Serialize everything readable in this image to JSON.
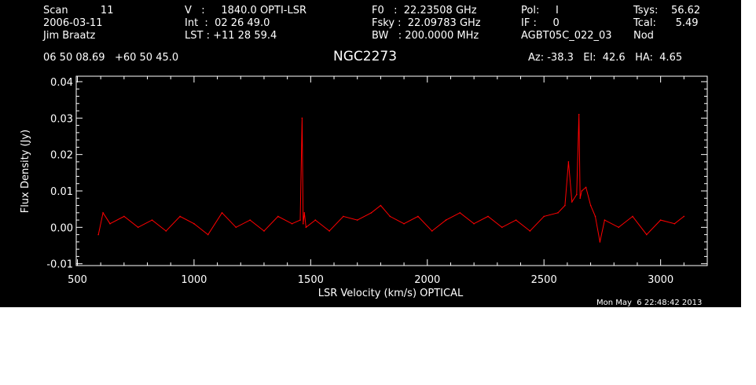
{
  "header": {
    "scan": "Scan          11",
    "date": "2006-03-11",
    "observer": "Jim Braatz",
    "velocity": "V   :     1840.0 OPTI-LSR",
    "int_time": "Int  :  02 26 49.0",
    "lst": "LST : +11 28 59.4",
    "f0": "F0   :  22.23508 GHz",
    "fsky": "Fsky :  22.09783 GHz",
    "bw": "BW   : 200.0000 MHz",
    "pol": "Pol:     I",
    "if": "IF :     0",
    "project": "AGBT05C_022_03",
    "tsys": "Tsys:    56.62",
    "tcal": "Tcal:      5.49",
    "mode": "Nod",
    "coords": "06 50 08.69   +60 50 45.0",
    "source": "NGC2273",
    "azelha": "Az: -38.3   El:  42.6   HA:  4.65",
    "timestamp": "Mon May  6 22:48:42 2013"
  },
  "colors": {
    "background": "#000000",
    "axes": "#ffffff",
    "series": "#ff0000"
  },
  "chart_data": {
    "type": "line",
    "title": "NGC2273",
    "xlabel": "LSR Velocity (km/s) OPTICAL",
    "ylabel": "Flux Density (Jy)",
    "xlim": [
      495,
      3200
    ],
    "ylim": [
      -0.0105,
      0.0415
    ],
    "xticks": [
      500,
      1000,
      1500,
      2000,
      2500,
      3000
    ],
    "xtick_labels": [
      "500",
      "1000",
      "1500",
      "2000",
      "2500",
      "3000"
    ],
    "yticks": [
      -0.01,
      0.0,
      0.01,
      0.02,
      0.03,
      0.04
    ],
    "ytick_labels": [
      "-0.01",
      "0.00",
      "0.01",
      "0.02",
      "0.03",
      "0.04"
    ],
    "grid": false,
    "series": [
      {
        "x": [
          590,
          610,
          640,
          700,
          760,
          820,
          880,
          940,
          1000,
          1060,
          1120,
          1180,
          1240,
          1300,
          1360,
          1420,
          1455,
          1463,
          1468,
          1473,
          1480,
          1520,
          1580,
          1640,
          1700,
          1760,
          1800,
          1840,
          1900,
          1960,
          2020,
          2080,
          2140,
          2200,
          2260,
          2320,
          2380,
          2440,
          2500,
          2560,
          2590,
          2605,
          2620,
          2640,
          2650,
          2655,
          2662,
          2680,
          2700,
          2720,
          2740,
          2760,
          2820,
          2880,
          2940,
          3000,
          3060,
          3100
        ],
        "y": [
          -0.002,
          0.004,
          0.001,
          0.003,
          0.0,
          0.002,
          -0.001,
          0.003,
          0.001,
          -0.002,
          0.004,
          0.0,
          0.002,
          -0.001,
          0.003,
          0.001,
          0.002,
          0.03,
          0.001,
          0.004,
          0.0,
          0.002,
          -0.001,
          0.003,
          0.002,
          0.004,
          0.006,
          0.003,
          0.001,
          0.003,
          -0.001,
          0.002,
          0.004,
          0.001,
          0.003,
          0.0,
          0.002,
          -0.001,
          0.003,
          0.004,
          0.006,
          0.018,
          0.007,
          0.009,
          0.031,
          0.008,
          0.01,
          0.011,
          0.006,
          0.003,
          -0.004,
          0.002,
          0.0,
          0.003,
          -0.002,
          0.002,
          0.001,
          0.003
        ]
      }
    ]
  }
}
